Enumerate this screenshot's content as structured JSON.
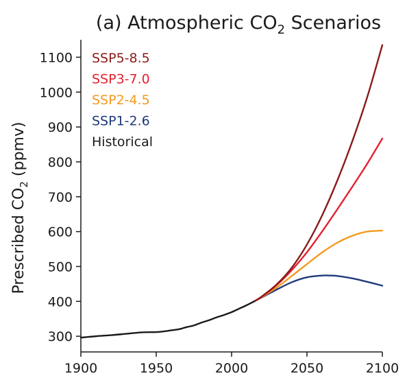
{
  "chart_data": {
    "type": "line",
    "title": "(a) Atmospheric CO",
    "title_subscript": "2",
    "title_suffix": " Scenarios",
    "xlabel": "",
    "ylabel": "Prescribed CO",
    "ylabel_subscript": "2",
    "ylabel_suffix": " (ppmv)",
    "xlim": [
      1900,
      2100
    ],
    "ylim": [
      255,
      1150
    ],
    "xticks": [
      1900,
      1950,
      2000,
      2050,
      2100
    ],
    "yticks": [
      300,
      400,
      500,
      600,
      700,
      800,
      900,
      1000,
      1100
    ],
    "grid": false,
    "legend_position": "top-left",
    "series": [
      {
        "name": "SSP5-8.5",
        "color": "#8b1a1a",
        "x": [
          2015,
          2020,
          2030,
          2040,
          2050,
          2060,
          2070,
          2080,
          2090,
          2100
        ],
        "values": [
          400,
          414,
          449,
          497,
          563,
          646,
          745,
          858,
          986,
          1135
        ]
      },
      {
        "name": "SSP3-7.0",
        "color": "#e3212f",
        "x": [
          2015,
          2020,
          2030,
          2040,
          2050,
          2060,
          2070,
          2080,
          2090,
          2100
        ],
        "values": [
          400,
          413,
          447,
          490,
          541,
          600,
          663,
          728,
          795,
          867
        ]
      },
      {
        "name": "SSP2-4.5",
        "color": "#f39a1f",
        "x": [
          2015,
          2020,
          2030,
          2040,
          2050,
          2060,
          2070,
          2080,
          2090,
          2100
        ],
        "values": [
          400,
          412,
          440,
          473,
          507,
          540,
          568,
          588,
          600,
          603
        ]
      },
      {
        "name": "SSP1-2.6",
        "color": "#1f3a79",
        "x": [
          2015,
          2020,
          2030,
          2040,
          2050,
          2060,
          2065,
          2070,
          2080,
          2090,
          2100
        ],
        "values": [
          400,
          411,
          434,
          455,
          469,
          474,
          474,
          473,
          466,
          456,
          445
        ]
      },
      {
        "name": "Historical",
        "color": "#1a1a1a",
        "x": [
          1900,
          1910,
          1920,
          1930,
          1940,
          1950,
          1955,
          1960,
          1965,
          1970,
          1975,
          1980,
          1985,
          1990,
          1995,
          2000,
          2005,
          2010,
          2015
        ],
        "values": [
          296,
          300,
          303,
          307,
          311,
          312,
          314,
          317,
          320,
          326,
          331,
          339,
          346,
          354,
          361,
          369,
          379,
          389,
          400
        ]
      }
    ]
  }
}
